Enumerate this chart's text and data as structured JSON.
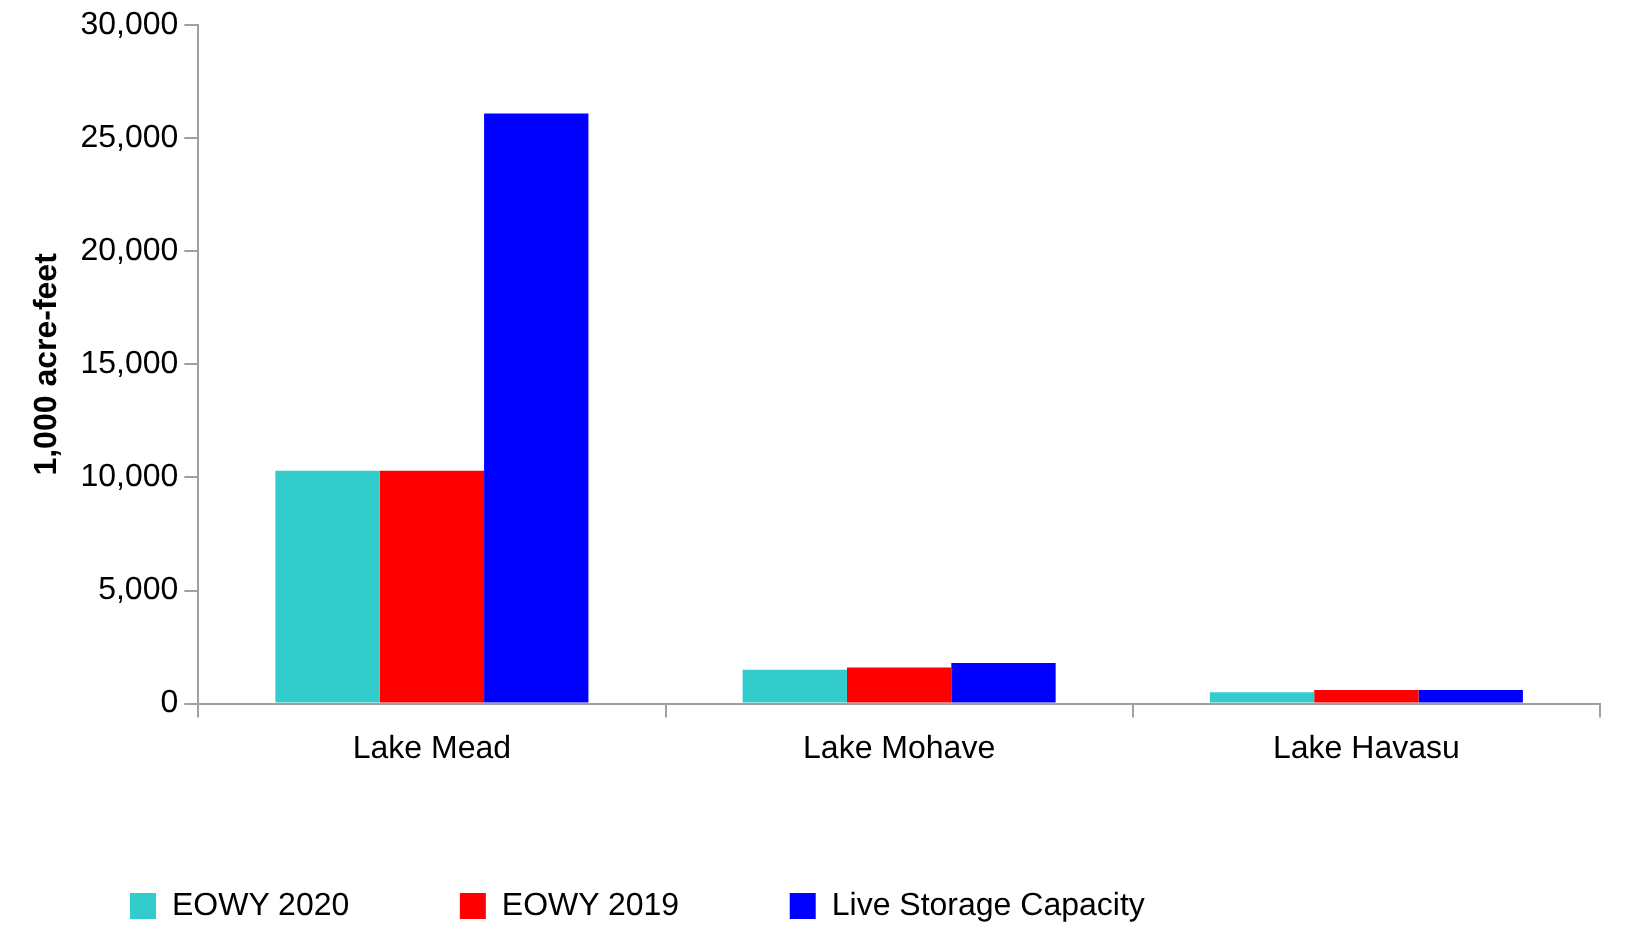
{
  "chart_data": {
    "type": "bar",
    "ylabel": "1,000 acre-feet",
    "categories": [
      "Lake Mead",
      "Lake Mohave",
      "Lake Havasu"
    ],
    "series": [
      {
        "name": "EOWY 2020",
        "color": "#33cccc",
        "values": [
          10300,
          1500,
          500
        ]
      },
      {
        "name": "EOWY 2019",
        "color": "#ff0000",
        "values": [
          10300,
          1600,
          600
        ]
      },
      {
        "name": "Live Storage Capacity",
        "color": "#0000ff",
        "values": [
          26100,
          1800,
          600
        ]
      }
    ],
    "ylim": [
      0,
      30000
    ],
    "yticks": [
      0,
      {
        "value": 5000,
        "label": "5,000"
      },
      {
        "value": 10000,
        "label": "10,000"
      },
      {
        "value": 15000,
        "label": "15,000"
      },
      {
        "value": 20000,
        "label": "20,000"
      },
      {
        "value": 25000,
        "label": "25,000"
      },
      {
        "value": 30000,
        "label": "30,000"
      }
    ],
    "grid": false,
    "legend": "bottom"
  }
}
